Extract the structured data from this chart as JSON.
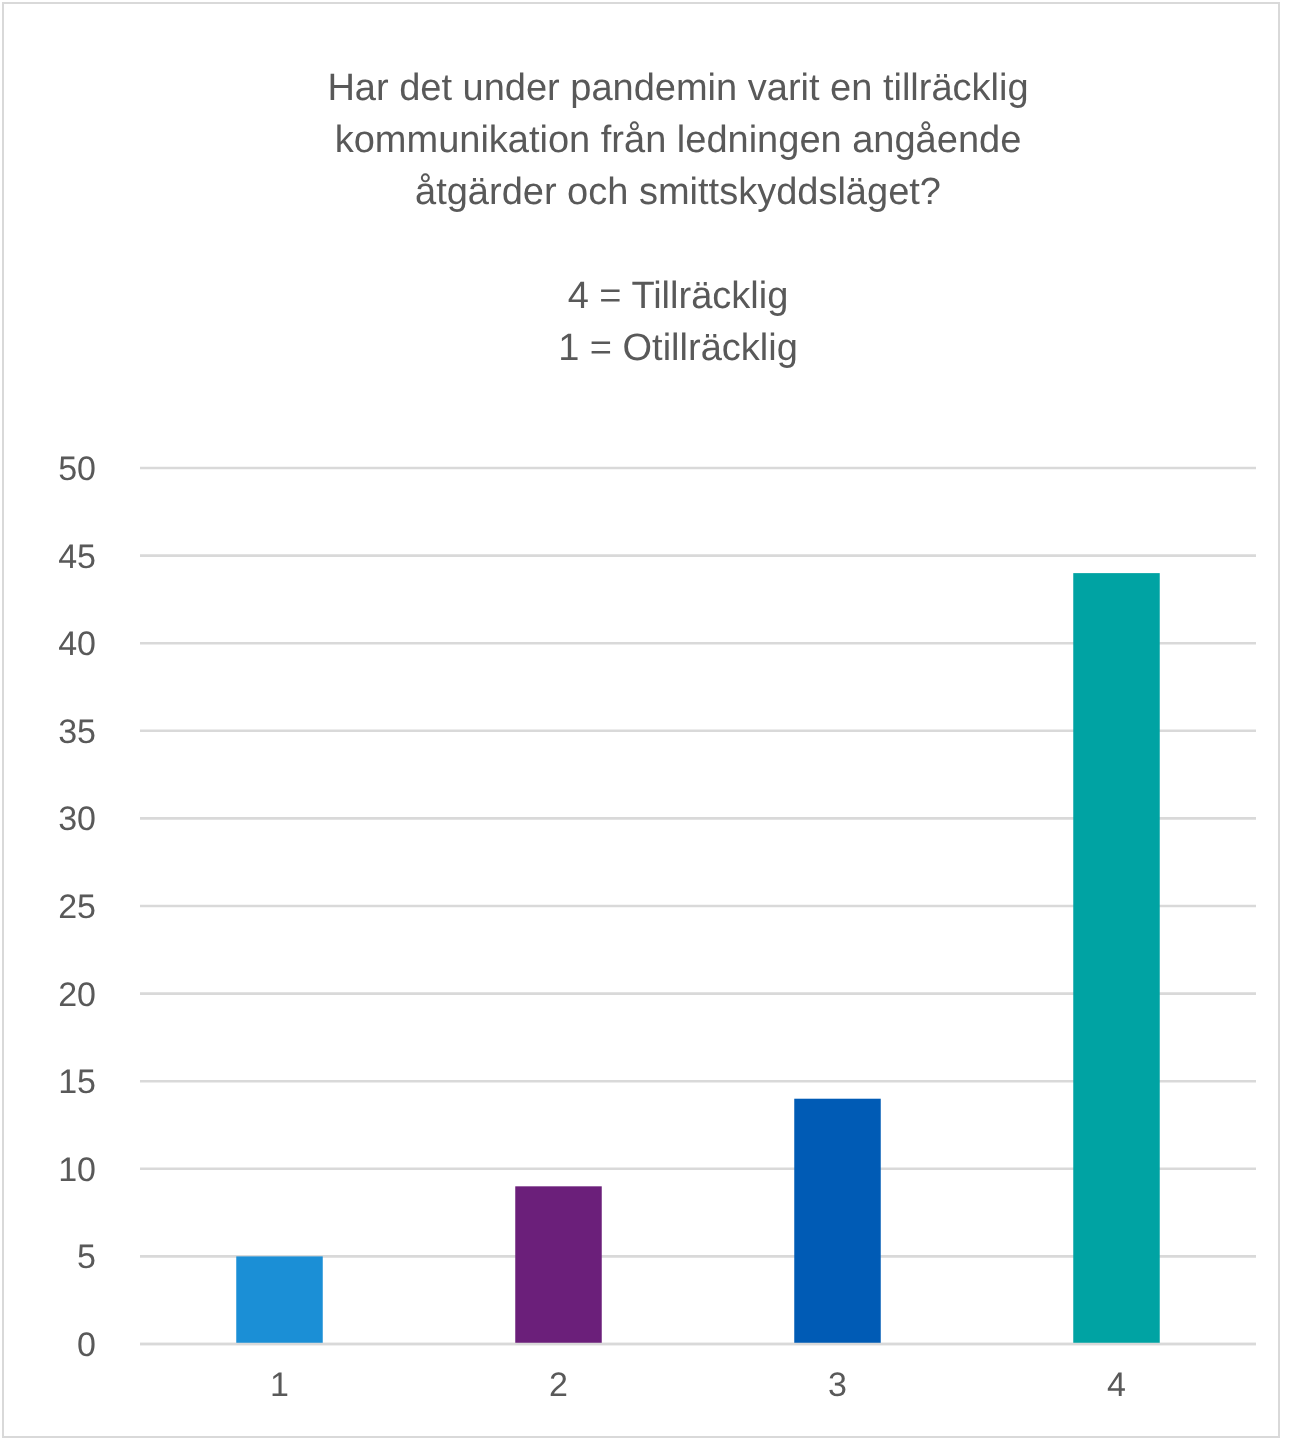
{
  "chart_data": {
    "type": "bar",
    "title": "Har det under pandemin varit en tillräcklig kommunikation från ledningen angående åtgärder och smittskyddsläget?",
    "subtitle": "4 = Tillräcklig\n1 = Otillräcklig",
    "categories": [
      "1",
      "2",
      "3",
      "4"
    ],
    "values": [
      5,
      9,
      14,
      44
    ],
    "colors": [
      "#1b8fd6",
      "#6b1f7a",
      "#005bb5",
      "#00a3a3"
    ],
    "ylim": [
      0,
      50
    ],
    "yticks": [
      0,
      5,
      10,
      15,
      20,
      25,
      30,
      35,
      40,
      45,
      50
    ],
    "grid": "y"
  }
}
